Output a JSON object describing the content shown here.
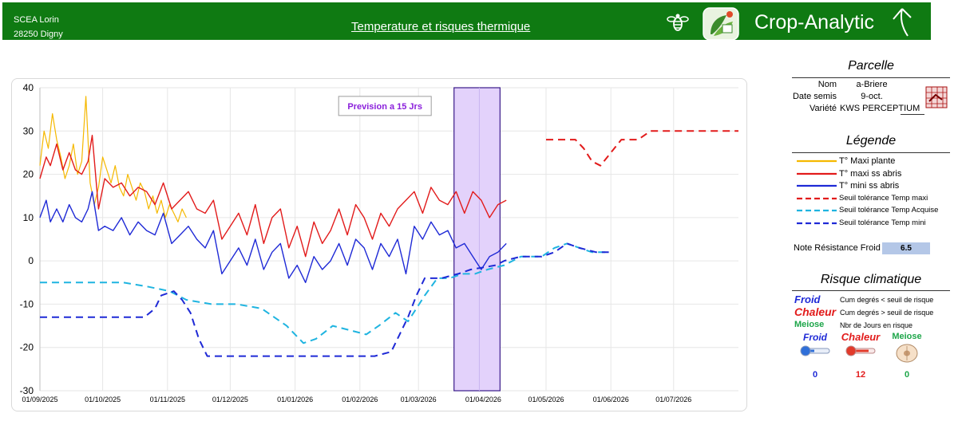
{
  "header": {
    "farm_name": "SCEA Lorin",
    "farm_town": "28250 Digny",
    "title": "Temperature et risques thermique",
    "brand": "Crop-Analytic"
  },
  "parcelle": {
    "title": "Parcelle",
    "rows": [
      {
        "label": "Nom",
        "value": "a-Briere"
      },
      {
        "label": "Date semis",
        "value": "9-oct."
      },
      {
        "label": "Variété",
        "value": "KWS PERCEPTIUM"
      }
    ]
  },
  "legend": {
    "title": "Légende",
    "items": [
      {
        "label": "T° Maxi plante",
        "color": "#f5b800",
        "style": "solid"
      },
      {
        "label": "T° maxi ss abris",
        "color": "#e21b1b",
        "style": "solid"
      },
      {
        "label": "T° mini ss abris",
        "color": "#1f2ad6",
        "style": "solid"
      },
      {
        "label": "Seuil tolérance Temp maxi",
        "color": "#e21b1b",
        "style": "dashed"
      },
      {
        "label": "Seuil tolérance Temp  Acquise",
        "color": "#1fb4e0",
        "style": "dashed"
      },
      {
        "label": "Seuil tolérance Temp  mini",
        "color": "#1f2ad6",
        "style": "dashed"
      }
    ]
  },
  "note": {
    "label": "Note Résistance Froid",
    "value": "6.5"
  },
  "risk": {
    "title": "Risque climatique",
    "rows": [
      {
        "tag": "Froid",
        "desc": "Cum degrés < seuil de risque",
        "color": "#1f2ad6"
      },
      {
        "tag": "Chaleur",
        "desc": "Cum degrés > seuil de risque",
        "color": "#e21b1b"
      },
      {
        "tag": "Meiose",
        "desc": "Nbr de Jours en risque",
        "color": "#1ea64a"
      }
    ],
    "columns": [
      {
        "name": "Froid",
        "value": "0",
        "color": "#1f2ad6"
      },
      {
        "name": "Chaleur",
        "value": "12",
        "color": "#e21b1b"
      },
      {
        "name": "Meiose",
        "value": "0",
        "color": "#1ea64a"
      }
    ]
  },
  "chart_data": {
    "type": "line",
    "title": "",
    "annotation": "Prevision a 15 Jrs",
    "ylim": [
      -30,
      40
    ],
    "yticks": [
      -30,
      -20,
      -10,
      0,
      10,
      20,
      30,
      40
    ],
    "xlim": [
      0,
      334
    ],
    "xticks": [
      {
        "day": 0,
        "label": "01/09/2025"
      },
      {
        "day": 30,
        "label": "01/10/2025"
      },
      {
        "day": 61,
        "label": "01/11/2025"
      },
      {
        "day": 91,
        "label": "01/12/2025"
      },
      {
        "day": 122,
        "label": "01/01/2026"
      },
      {
        "day": 153,
        "label": "01/02/2026"
      },
      {
        "day": 181,
        "label": "01/03/2026"
      },
      {
        "day": 212,
        "label": "01/04/2026"
      },
      {
        "day": 242,
        "label": "01/05/2026"
      },
      {
        "day": 273,
        "label": "01/06/2026"
      },
      {
        "day": 303,
        "label": "01/07/2026"
      }
    ],
    "forecast_range": [
      198,
      220
    ],
    "series": [
      {
        "name": "T° Maxi plante",
        "color": "#f5b800",
        "dash": false,
        "width": 1.2,
        "x": [
          0,
          2,
          4,
          6,
          8,
          10,
          12,
          14,
          16,
          18,
          20,
          22,
          24,
          26,
          28,
          30,
          32,
          34,
          36,
          38,
          40,
          42,
          44,
          46,
          48,
          50,
          52,
          54,
          56,
          58,
          60,
          62,
          64,
          66,
          68,
          70
        ],
        "y": [
          22,
          30,
          26,
          34,
          28,
          24,
          19,
          22,
          27,
          20,
          23,
          38,
          18,
          13,
          17,
          24,
          21,
          18,
          22,
          17,
          15,
          20,
          17,
          14,
          18,
          16,
          12,
          15,
          11,
          14,
          10,
          13,
          11,
          9,
          12,
          10
        ]
      },
      {
        "name": "T° maxi ss abris",
        "color": "#e21b1b",
        "dash": false,
        "width": 1.4,
        "x": [
          0,
          3,
          5,
          8,
          11,
          14,
          17,
          20,
          23,
          25,
          28,
          31,
          35,
          39,
          43,
          47,
          51,
          55,
          59,
          63,
          67,
          71,
          75,
          79,
          83,
          87,
          91,
          95,
          99,
          103,
          107,
          111,
          115,
          119,
          123,
          127,
          131,
          135,
          139,
          143,
          147,
          151,
          155,
          159,
          163,
          167,
          171,
          175,
          179,
          183,
          187,
          191,
          195,
          199,
          203,
          207,
          211,
          215,
          219,
          223
        ],
        "y": [
          19,
          24,
          22,
          27,
          21,
          25,
          21,
          20,
          23,
          29,
          12,
          19,
          17,
          18,
          15,
          17,
          16,
          13,
          18,
          12,
          14,
          16,
          12,
          11,
          14,
          5,
          8,
          11,
          6,
          13,
          4,
          10,
          12,
          3,
          8,
          1,
          9,
          4,
          7,
          12,
          6,
          13,
          10,
          5,
          11,
          8,
          12,
          14,
          16,
          11,
          17,
          14,
          13,
          16,
          11,
          16,
          14,
          10,
          13,
          14
        ]
      },
      {
        "name": "T° mini ss abris",
        "color": "#1f2ad6",
        "dash": false,
        "width": 1.4,
        "x": [
          0,
          3,
          5,
          8,
          11,
          14,
          17,
          20,
          23,
          25,
          28,
          31,
          35,
          39,
          43,
          47,
          51,
          55,
          59,
          63,
          67,
          71,
          75,
          79,
          83,
          87,
          91,
          95,
          99,
          103,
          107,
          111,
          115,
          119,
          123,
          127,
          131,
          135,
          139,
          143,
          147,
          151,
          155,
          159,
          163,
          167,
          171,
          175,
          179,
          183,
          187,
          191,
          195,
          199,
          203,
          207,
          211,
          215,
          219,
          223
        ],
        "y": [
          10,
          14,
          9,
          12,
          9,
          13,
          10,
          9,
          12,
          16,
          7,
          8,
          7,
          10,
          6,
          9,
          7,
          6,
          11,
          4,
          6,
          8,
          5,
          3,
          7,
          -3,
          0,
          3,
          -1,
          5,
          -2,
          2,
          4,
          -4,
          -1,
          -5,
          1,
          -2,
          0,
          4,
          -1,
          5,
          3,
          -2,
          4,
          1,
          5,
          -3,
          8,
          5,
          9,
          6,
          7,
          3,
          4,
          1,
          -2,
          1,
          2,
          4
        ]
      },
      {
        "name": "Seuil tolérance Temp maxi",
        "color": "#e21b1b",
        "dash": true,
        "width": 2,
        "x": [
          242,
          250,
          256,
          260,
          264,
          268,
          273,
          278,
          282,
          286,
          292,
          334
        ],
        "y": [
          28,
          28,
          28,
          26,
          23,
          22,
          25,
          28,
          28,
          28,
          30,
          30
        ]
      },
      {
        "name": "Seuil tolérance Temp  Acquise",
        "color": "#1fb4e0",
        "dash": true,
        "width": 2,
        "x": [
          0,
          40,
          52,
          62,
          70,
          82,
          94,
          106,
          118,
          126,
          132,
          140,
          148,
          156,
          162,
          170,
          176,
          184,
          190,
          196,
          202,
          208,
          214,
          222,
          230,
          240,
          246,
          252,
          258,
          264,
          272
        ],
        "y": [
          -5,
          -5,
          -6,
          -7,
          -9,
          -10,
          -10,
          -11,
          -15,
          -19,
          -18,
          -15,
          -16,
          -17,
          -15,
          -12,
          -14,
          -8,
          -4,
          -4,
          -3,
          -3,
          -2,
          -1,
          1,
          1,
          3,
          4,
          3,
          2,
          2
        ]
      },
      {
        "name": "Seuil tolérance Temp  mini",
        "color": "#1f2ad6",
        "dash": true,
        "width": 2,
        "x": [
          0,
          50,
          55,
          58,
          64,
          68,
          72,
          76,
          80,
          86,
          100,
          120,
          140,
          160,
          168,
          172,
          176,
          180,
          184,
          188,
          192,
          196,
          200,
          206,
          212,
          218,
          222,
          230,
          240,
          246,
          252,
          258,
          266,
          272
        ],
        "y": [
          -13,
          -13,
          -11,
          -8,
          -7,
          -9,
          -12,
          -18,
          -22,
          -22,
          -22,
          -22,
          -22,
          -22,
          -21,
          -17,
          -13,
          -8,
          -4,
          -4,
          -4,
          -3.5,
          -3,
          -2,
          -1.5,
          -1,
          0,
          1,
          1,
          2,
          4,
          3,
          2,
          2
        ]
      }
    ]
  }
}
